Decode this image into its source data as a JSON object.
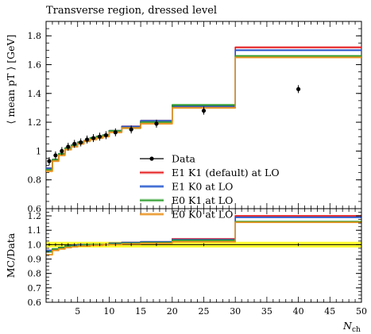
{
  "chart_data": [
    {
      "panel": "main",
      "type": "line",
      "title": "Transverse region, dressed level",
      "ylabel": "⟨ mean pT ⟩ [GeV]",
      "ylim": [
        0.6,
        1.9
      ],
      "yticks": [
        "0.6",
        "0.8",
        "1",
        "1.2",
        "1.4",
        "1.6",
        "1.8"
      ],
      "xlim": [
        0,
        50
      ],
      "bin_edges": [
        0,
        1,
        2,
        3,
        4,
        5,
        6,
        7,
        8,
        9,
        10,
        12,
        15,
        20,
        30,
        50
      ],
      "data": {
        "name": "Data",
        "x": [
          0.5,
          1.5,
          2.5,
          3.5,
          4.5,
          5.5,
          6.5,
          7.5,
          8.5,
          9.5,
          11,
          13.5,
          17.5,
          25,
          40
        ],
        "y": [
          0.93,
          0.97,
          1.0,
          1.03,
          1.05,
          1.06,
          1.08,
          1.09,
          1.1,
          1.11,
          1.13,
          1.15,
          1.19,
          1.28,
          1.43
        ]
      },
      "series": [
        {
          "name": "E1 K1 (default) at LO",
          "color": "#e41a1c",
          "values": [
            0.88,
            0.94,
            0.98,
            1.02,
            1.04,
            1.06,
            1.07,
            1.09,
            1.1,
            1.11,
            1.14,
            1.17,
            1.21,
            1.31,
            1.72
          ]
        },
        {
          "name": "E1 K0 at LO",
          "color": "#2255cc",
          "values": [
            0.88,
            0.94,
            0.98,
            1.02,
            1.04,
            1.06,
            1.07,
            1.09,
            1.1,
            1.11,
            1.14,
            1.17,
            1.21,
            1.31,
            1.7
          ]
        },
        {
          "name": "E0 K1 at LO",
          "color": "#2a9a2a",
          "values": [
            0.87,
            0.94,
            0.98,
            1.02,
            1.04,
            1.06,
            1.07,
            1.09,
            1.1,
            1.11,
            1.14,
            1.16,
            1.2,
            1.32,
            1.66
          ]
        },
        {
          "name": "E0 K0 at LO",
          "color": "#e8901a",
          "values": [
            0.86,
            0.93,
            0.97,
            1.01,
            1.03,
            1.05,
            1.07,
            1.08,
            1.09,
            1.1,
            1.13,
            1.16,
            1.19,
            1.3,
            1.65
          ]
        }
      ]
    },
    {
      "panel": "ratio",
      "type": "line",
      "ylabel": "MC/Data",
      "xlabel": "Nch",
      "ylim": [
        0.6,
        1.25
      ],
      "yticks": [
        "0.6",
        "0.7",
        "0.8",
        "0.9",
        "1.0",
        "1.1",
        "1.2"
      ],
      "xticks": [
        "5",
        "10",
        "15",
        "20",
        "25",
        "30",
        "35",
        "40",
        "45",
        "50"
      ],
      "xlim": [
        0,
        50
      ],
      "bin_edges": [
        0,
        1,
        2,
        3,
        4,
        5,
        6,
        7,
        8,
        9,
        10,
        12,
        15,
        20,
        30,
        50
      ],
      "data_band": 0.02,
      "series": [
        {
          "name": "E1 K1 (default) at LO",
          "color": "#e41a1c",
          "values": [
            0.96,
            0.97,
            0.98,
            0.99,
            0.995,
            1.0,
            1.0,
            1.0,
            1.0,
            1.0,
            1.01,
            1.015,
            1.02,
            1.04,
            1.2
          ]
        },
        {
          "name": "E1 K0 at LO",
          "color": "#2255cc",
          "values": [
            0.96,
            0.97,
            0.98,
            0.99,
            0.995,
            1.0,
            1.0,
            1.0,
            1.0,
            1.0,
            1.01,
            1.015,
            1.02,
            1.035,
            1.19
          ]
        },
        {
          "name": "E0 K1 at LO",
          "color": "#2a9a2a",
          "values": [
            0.95,
            0.97,
            0.98,
            0.99,
            0.99,
            0.995,
            1.0,
            1.0,
            1.0,
            1.0,
            1.005,
            1.01,
            1.015,
            1.03,
            1.16
          ]
        },
        {
          "name": "E0 K0 at LO",
          "color": "#e8901a",
          "values": [
            0.93,
            0.96,
            0.97,
            0.98,
            0.985,
            0.99,
            0.99,
            0.995,
            0.995,
            1.0,
            1.0,
            1.005,
            1.01,
            1.02,
            1.155
          ]
        }
      ]
    }
  ],
  "legend": {
    "position": "lower-right",
    "entries": [
      "Data",
      "E1 K1 (default) at LO",
      "E1 K0 at LO",
      "E0 K1 at LO",
      "E0 K0 at LO"
    ]
  }
}
